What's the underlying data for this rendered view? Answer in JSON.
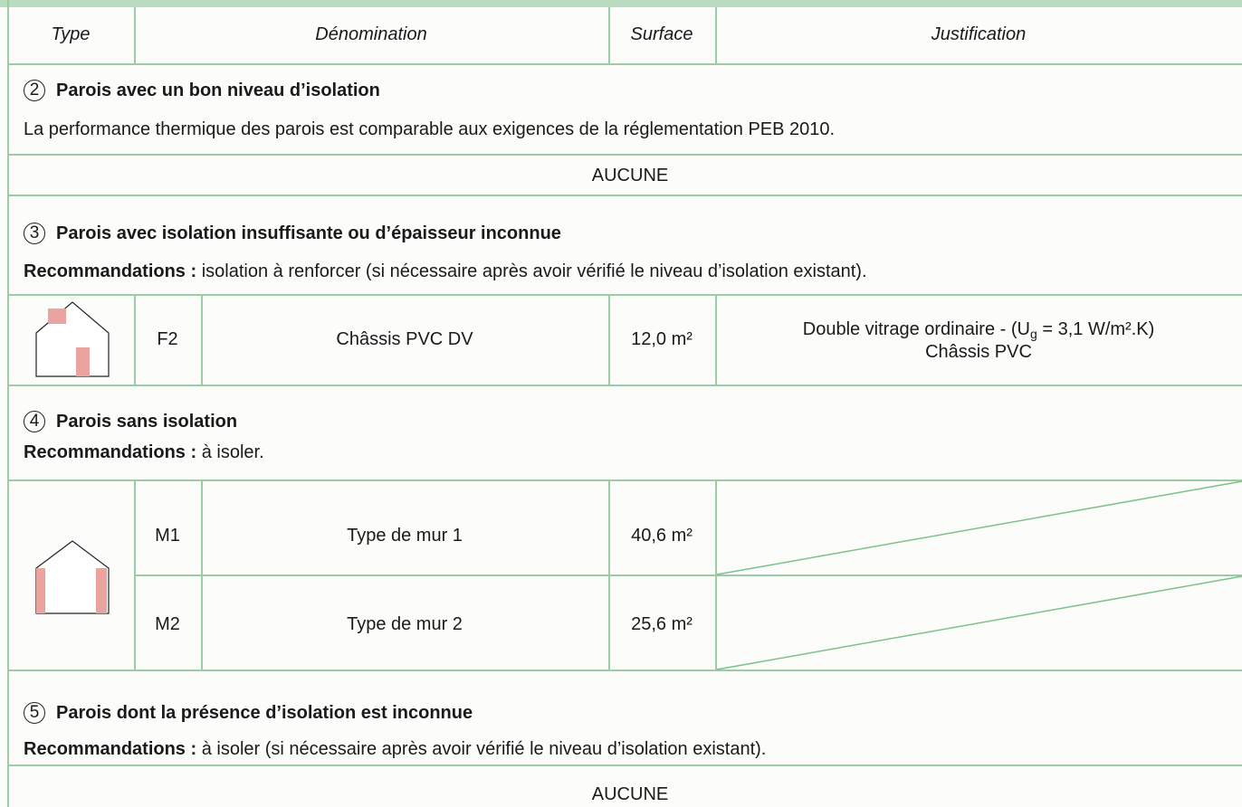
{
  "header": [
    "Type",
    "Dénomination",
    "Surface",
    "Justification"
  ],
  "sections": [
    {
      "number": "2",
      "title": "Parois avec un bon niveau d’isolation",
      "description": "La performance thermique des parois est comparable aux exigences de la réglementation PEB 2010.",
      "empty": "AUCUNE"
    },
    {
      "number": "3",
      "title": "Parois avec isolation insuffisante ou d’épaisseur inconnue",
      "recommendation": {
        "label": "Recommandations :",
        "text": "isolation à renforcer (si nécessaire après avoir vérifié le niveau d’isolation existant)."
      },
      "rows": [
        {
          "code": "F2",
          "name": "Châssis PVC DV",
          "surface": "12,0 m²",
          "justification": {
            "line1": [
              "Double vitrage ordinaire - (U",
              "g",
              "= 3,1 W/m².K)"
            ],
            "line2": "Châssis PVC"
          }
        }
      ]
    },
    {
      "number": "4",
      "title": "Parois sans isolation",
      "recommendation": {
        "label": "Recommandations :",
        "text": "à isoler."
      },
      "rows": [
        {
          "code": "M1",
          "name": "Type de mur 1",
          "surface": "40,6 m²"
        },
        {
          "code": "M2",
          "name": "Type de mur 2",
          "surface": "25,6 m²"
        }
      ]
    },
    {
      "number": "5",
      "title": "Parois dont la présence d’isolation est inconnue",
      "recommendation": {
        "label": "Recommandations :",
        "text": "à isoler (si nécessaire après avoir vérifié le niveau d’isolation existant)."
      },
      "empty": "AUCUNE"
    }
  ]
}
